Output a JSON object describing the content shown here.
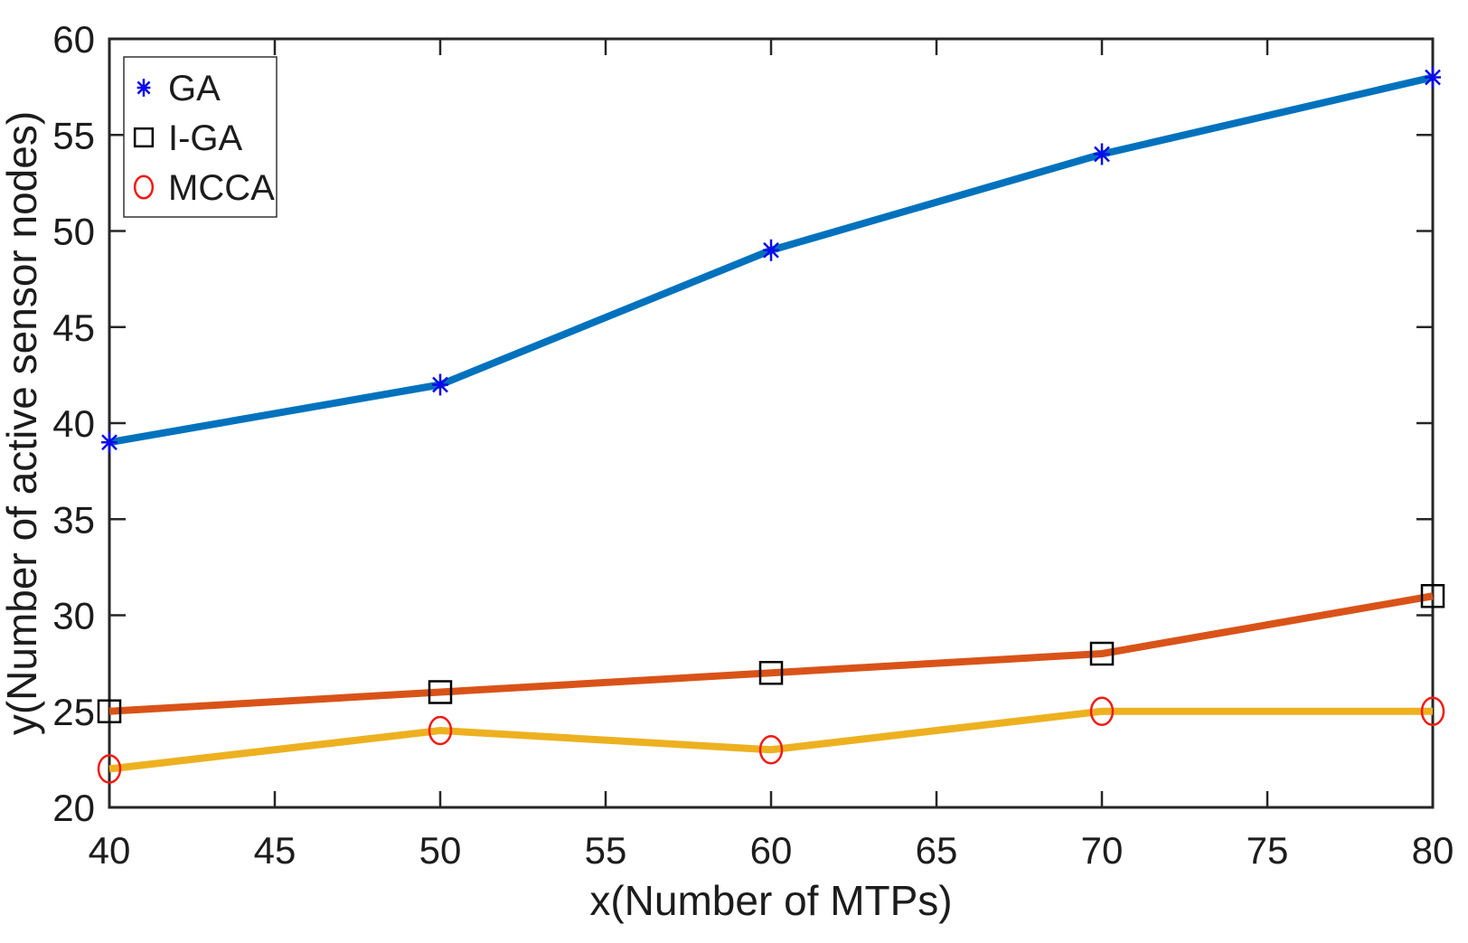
{
  "figure": {
    "background": "#ffffff",
    "axis_color": "#262626",
    "text_color": "#1c1c1c"
  },
  "chart_data": {
    "type": "line",
    "title": "",
    "xlabel": "x(Number of MTPs)",
    "ylabel": "y(Number of active sensor nodes)",
    "x": [
      40,
      50,
      60,
      70,
      80
    ],
    "xlim": [
      40,
      80
    ],
    "ylim": [
      20,
      60
    ],
    "xticks": [
      40,
      45,
      50,
      55,
      60,
      65,
      70,
      75,
      80
    ],
    "yticks": [
      20,
      25,
      30,
      35,
      40,
      45,
      50,
      55,
      60
    ],
    "grid": false,
    "legend_position": "top-left",
    "series": [
      {
        "name": "GA",
        "values": [
          39,
          42,
          49,
          54,
          58
        ],
        "line_color": "#0072BD",
        "marker": "asterisk",
        "marker_color": "#0B0BEB"
      },
      {
        "name": "I-GA",
        "values": [
          25,
          26,
          27,
          28,
          31
        ],
        "line_color": "#D95319",
        "marker": "square",
        "marker_color": "#000000"
      },
      {
        "name": "MCCA",
        "values": [
          22,
          24,
          23,
          25,
          25
        ],
        "line_color": "#EDB120",
        "marker": "circle",
        "marker_color": "#F21A12"
      }
    ]
  }
}
